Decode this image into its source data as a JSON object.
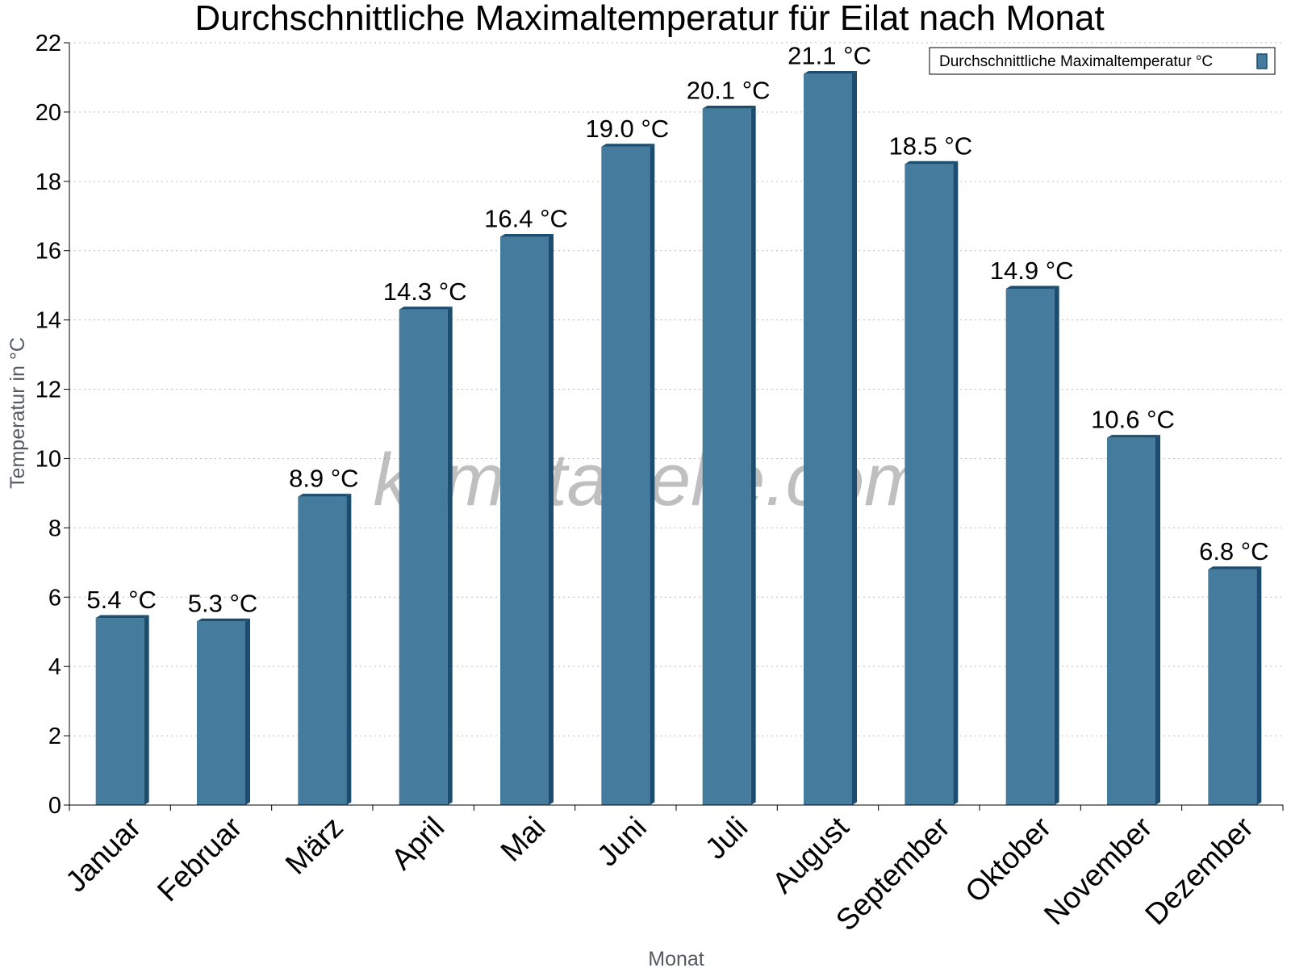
{
  "chart_data": {
    "type": "bar",
    "title": "Durchschnittliche Maximaltemperatur für Eilat nach Monat",
    "xlabel": "Monat",
    "ylabel": "Temperatur in °C",
    "categories": [
      "Januar",
      "Februar",
      "März",
      "April",
      "Mai",
      "Juni",
      "Juli",
      "August",
      "September",
      "Oktober",
      "November",
      "Dezember"
    ],
    "series": [
      {
        "name": "Durchschnittliche Maximaltemperatur °C",
        "values": [
          5.4,
          5.3,
          8.9,
          14.3,
          16.4,
          19.0,
          20.1,
          21.1,
          18.5,
          14.9,
          10.6,
          6.8
        ],
        "data_labels": [
          "5.4 °C",
          "5.3 °C",
          "8.9 °C",
          "14.3 °C",
          "16.4 °C",
          "19.0 °C",
          "20.1 °C",
          "21.1 °C",
          "18.5 °C",
          "14.9 °C",
          "10.6 °C",
          "6.8 °C"
        ],
        "color": "#457b9d",
        "edge_color": "#1d4d6e"
      }
    ],
    "y_ticks": [
      "0",
      "2",
      "4",
      "6",
      "8",
      "10",
      "12",
      "14",
      "16",
      "18",
      "20",
      "22"
    ],
    "ylim": [
      0,
      22
    ],
    "grid": true,
    "legend_position": "top-right",
    "watermark": "klimatabelle.com"
  }
}
